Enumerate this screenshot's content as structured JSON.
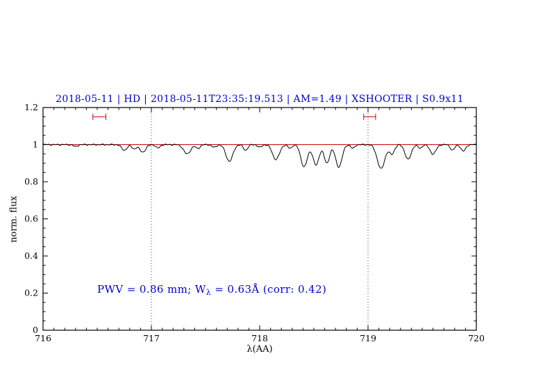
{
  "chart_data": {
    "type": "line",
    "title": "2018-05-11 | HD | 2018-05-11T23:35:19.513 | AM=1.49 | XSHOOTER | S0.9x11",
    "title_color": "#0000cd",
    "xlabel": "λ(AA)",
    "ylabel": "norm. flux",
    "xlim": [
      716,
      720
    ],
    "ylim": [
      0,
      1.2
    ],
    "grid": "off",
    "xticks": {
      "major": [
        716,
        717,
        718,
        719,
        720
      ],
      "labels": [
        "716",
        "717",
        "718",
        "719",
        "720"
      ],
      "minor_step": 0.1
    },
    "yticks": {
      "major": [
        0,
        0.2,
        0.4,
        0.6,
        0.8,
        1,
        1.2
      ],
      "labels": [
        "0",
        "0.2",
        "0.4",
        "0.6",
        "0.8",
        "1",
        "1.2"
      ],
      "minor_step": 0.05
    },
    "dotted_vlines": {
      "x": [
        717,
        719
      ],
      "color": "#444444",
      "style": "dotted"
    },
    "continuum_line": {
      "y": 1.0,
      "color": "#cc0000"
    },
    "region_markers": [
      {
        "x1": 716.46,
        "x2": 716.58,
        "y": 1.15,
        "color": "#cc0000"
      },
      {
        "x1": 718.96,
        "x2": 719.07,
        "y": 1.15,
        "color": "#cc0000"
      }
    ],
    "spectrum": {
      "color": "#000000",
      "continuum": 1.0,
      "sample_step": 0.005,
      "absorption_lines": [
        {
          "center": 716.3,
          "depth": 0.01,
          "sigma": 0.02
        },
        {
          "center": 716.75,
          "depth": 0.03,
          "sigma": 0.025
        },
        {
          "center": 716.84,
          "depth": 0.022,
          "sigma": 0.02
        },
        {
          "center": 716.92,
          "depth": 0.04,
          "sigma": 0.028
        },
        {
          "center": 717.06,
          "depth": 0.018,
          "sigma": 0.02
        },
        {
          "center": 717.33,
          "depth": 0.05,
          "sigma": 0.032
        },
        {
          "center": 717.43,
          "depth": 0.02,
          "sigma": 0.02
        },
        {
          "center": 717.58,
          "depth": 0.015,
          "sigma": 0.02
        },
        {
          "center": 717.72,
          "depth": 0.09,
          "sigma": 0.032
        },
        {
          "center": 717.87,
          "depth": 0.03,
          "sigma": 0.02
        },
        {
          "center": 718.0,
          "depth": 0.015,
          "sigma": 0.018
        },
        {
          "center": 718.15,
          "depth": 0.08,
          "sigma": 0.032
        },
        {
          "center": 718.28,
          "depth": 0.02,
          "sigma": 0.018
        },
        {
          "center": 718.41,
          "depth": 0.12,
          "sigma": 0.03
        },
        {
          "center": 718.52,
          "depth": 0.11,
          "sigma": 0.028
        },
        {
          "center": 718.62,
          "depth": 0.1,
          "sigma": 0.025
        },
        {
          "center": 718.73,
          "depth": 0.12,
          "sigma": 0.03
        },
        {
          "center": 718.86,
          "depth": 0.02,
          "sigma": 0.018
        },
        {
          "center": 719.12,
          "depth": 0.13,
          "sigma": 0.035
        },
        {
          "center": 719.22,
          "depth": 0.05,
          "sigma": 0.024
        },
        {
          "center": 719.37,
          "depth": 0.08,
          "sigma": 0.028
        },
        {
          "center": 719.48,
          "depth": 0.02,
          "sigma": 0.018
        },
        {
          "center": 719.6,
          "depth": 0.05,
          "sigma": 0.028
        },
        {
          "center": 719.78,
          "depth": 0.03,
          "sigma": 0.02
        },
        {
          "center": 719.88,
          "depth": 0.035,
          "sigma": 0.022
        }
      ]
    }
  },
  "annotation": {
    "pre": "PWV = 0.86 mm; W",
    "sub": "λ",
    "post": " = 0.63Å (corr: 0.42)",
    "color": "#0000cd"
  }
}
